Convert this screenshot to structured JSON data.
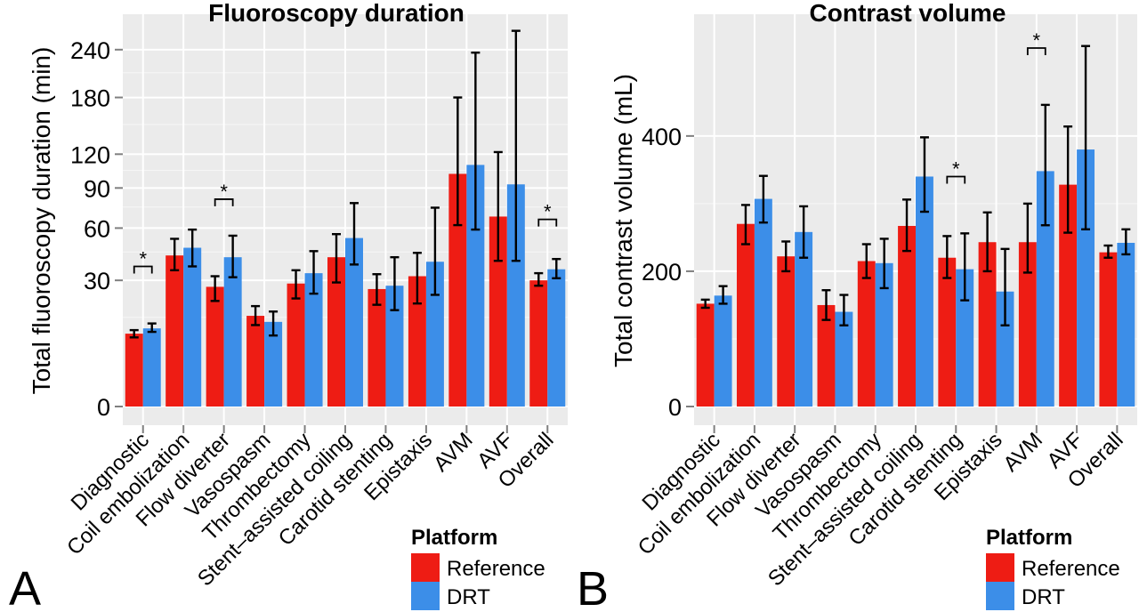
{
  "chart_data": [
    {
      "panel_label": "A",
      "type": "bar",
      "title": "Fluoroscopy duration",
      "ylabel": "Total fluoroscopy duration (min)",
      "xlabel": "",
      "y_scale": "sqrt",
      "ylim": [
        0,
        290
      ],
      "yticks": [
        0,
        30,
        60,
        90,
        120,
        180,
        240
      ],
      "ytick_labels": [
        "0",
        "30",
        "60",
        "90",
        "120",
        "180",
        "240"
      ],
      "grid": true,
      "categories": [
        "Diagnostic",
        "Coil embolization",
        "Flow diverter",
        "Vasospasm",
        "Thrombectomy",
        "Stent–assisted coiling",
        "Carotid stenting",
        "Epistaxis",
        "AVM",
        "AVF",
        "Overall"
      ],
      "series": [
        {
          "name": "Reference",
          "color": "#ee1c14",
          "values": [
            10,
            43,
            27,
            15.5,
            28.5,
            42,
            26,
            32,
            102,
            68,
            30
          ],
          "error_low": [
            9,
            35,
            21,
            12.5,
            22,
            29,
            19.5,
            20,
            62,
            40,
            27.5
          ],
          "error_high": [
            11,
            53,
            32,
            19,
            35,
            56,
            33,
            44.5,
            180,
            122,
            33.5
          ]
        },
        {
          "name": "DRT",
          "color": "#3c8ee8",
          "values": [
            11.5,
            47.5,
            42,
            13.5,
            33.5,
            53.5,
            27.5,
            39.5,
            110,
            93,
            35.5
          ],
          "error_low": [
            10.5,
            37,
            31.5,
            9.5,
            24,
            38,
            17.5,
            23.5,
            59,
            40,
            31
          ],
          "error_high": [
            13,
            59,
            55,
            17,
            45.5,
            78,
            42,
            74.5,
            236,
            266,
            41
          ]
        }
      ],
      "significance": [
        {
          "category_index": 0,
          "label": "*",
          "bracket_y": 37
        },
        {
          "category_index": 2,
          "label": "*",
          "bracket_y": 81
        },
        {
          "category_index": 10,
          "label": "*",
          "bracket_y": 66
        }
      ],
      "legend": {
        "title": "Platform",
        "placement": "bottom-right",
        "items": [
          "Reference",
          "DRT"
        ]
      }
    },
    {
      "panel_label": "B",
      "type": "bar",
      "title": "Contrast volume",
      "ylabel": "Total contrast volume (mL)",
      "xlabel": "",
      "y_scale": "linear",
      "ylim": [
        0,
        580
      ],
      "yticks": [
        0,
        200,
        400
      ],
      "ytick_labels": [
        "0",
        "200",
        "400"
      ],
      "grid": true,
      "categories": [
        "Diagnostic",
        "Coil embolization",
        "Flow diverter",
        "Vasospasm",
        "Thrombectomy",
        "Stent–assisted coiling",
        "Carotid stenting",
        "Epistaxis",
        "AVM",
        "AVF",
        "Overall"
      ],
      "series": [
        {
          "name": "Reference",
          "color": "#ee1c14",
          "values": [
            152,
            270,
            222,
            150,
            215,
            267,
            220,
            243,
            243,
            328,
            228
          ],
          "error_low": [
            146,
            240,
            200,
            128,
            190,
            230,
            190,
            200,
            198,
            257,
            220
          ],
          "error_high": [
            158,
            298,
            244,
            172,
            240,
            306,
            252,
            287,
            300,
            414,
            238
          ]
        },
        {
          "name": "DRT",
          "color": "#3c8ee8",
          "values": [
            164,
            307,
            258,
            140,
            212,
            340,
            203,
            170,
            348,
            380,
            242
          ],
          "error_low": [
            152,
            272,
            220,
            120,
            175,
            288,
            157,
            120,
            268,
            262,
            225
          ],
          "error_high": [
            178,
            341,
            296,
            165,
            248,
            398,
            256,
            233,
            446,
            533,
            262
          ]
        }
      ],
      "significance": [
        {
          "category_index": 6,
          "label": "*",
          "bracket_y": 340
        },
        {
          "category_index": 8,
          "label": "*",
          "bracket_y": 530
        }
      ],
      "legend": {
        "title": "Platform",
        "placement": "bottom-right",
        "items": [
          "Reference",
          "DRT"
        ]
      }
    }
  ]
}
